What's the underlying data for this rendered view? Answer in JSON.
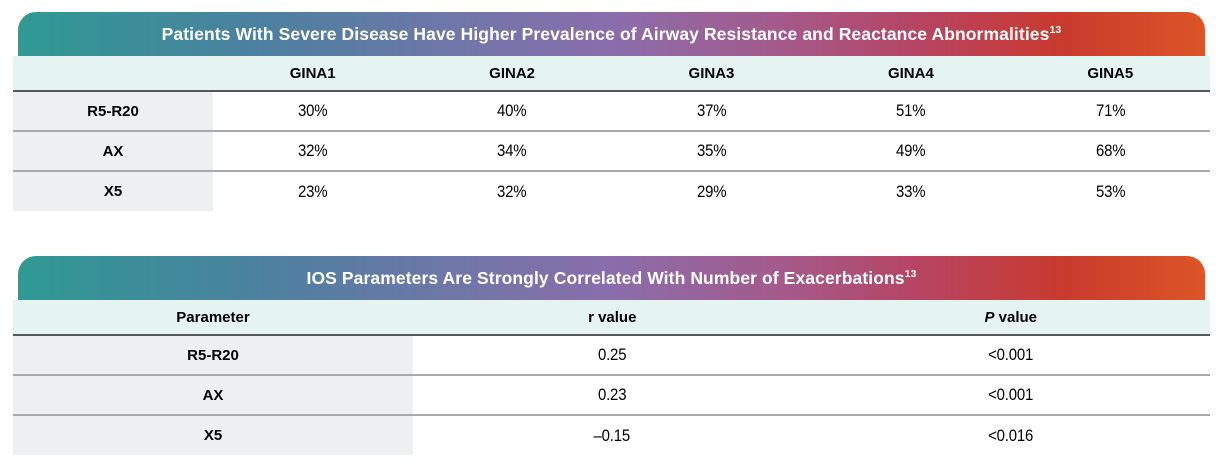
{
  "colors": {
    "gradient_left_teal": "#2f9a94",
    "gradient_mid_purple": "#8a6dac",
    "gradient_right_red": "#dc5526",
    "header_row_bg": "#e6f4f1",
    "label_column_bg": "#edeff0",
    "row_divider": "#a7a9ac",
    "header_divider": "#55595b",
    "title_text": "#ffffff"
  },
  "table1": {
    "title": "Patients With Severe Disease Have Higher Prevalence of Airway Resistance and Reactance Abnormalities",
    "title_sup": "13",
    "columns": [
      "GINA1",
      "GINA2",
      "GINA3",
      "GINA4",
      "GINA5"
    ],
    "rows": [
      {
        "label": "R5-R20",
        "values": [
          "30%",
          "40%",
          "37%",
          "51%",
          "71%"
        ]
      },
      {
        "label": "AX",
        "values": [
          "32%",
          "34%",
          "35%",
          "49%",
          "68%"
        ]
      },
      {
        "label": "X5",
        "values": [
          "23%",
          "32%",
          "29%",
          "33%",
          "53%"
        ]
      }
    ]
  },
  "table2": {
    "title": "IOS Parameters Are Strongly Correlated With Number of Exacerbations",
    "title_sup": "13",
    "columns": [
      "Parameter",
      "r value",
      "P value"
    ],
    "rows": [
      {
        "label": "R5-R20",
        "r_value": "0.25",
        "p_value": "<0.001"
      },
      {
        "label": "AX",
        "r_value": "0.23",
        "p_value": "<0.001"
      },
      {
        "label": "X5",
        "r_value": "–0.15",
        "p_value": "<0.016"
      }
    ]
  }
}
